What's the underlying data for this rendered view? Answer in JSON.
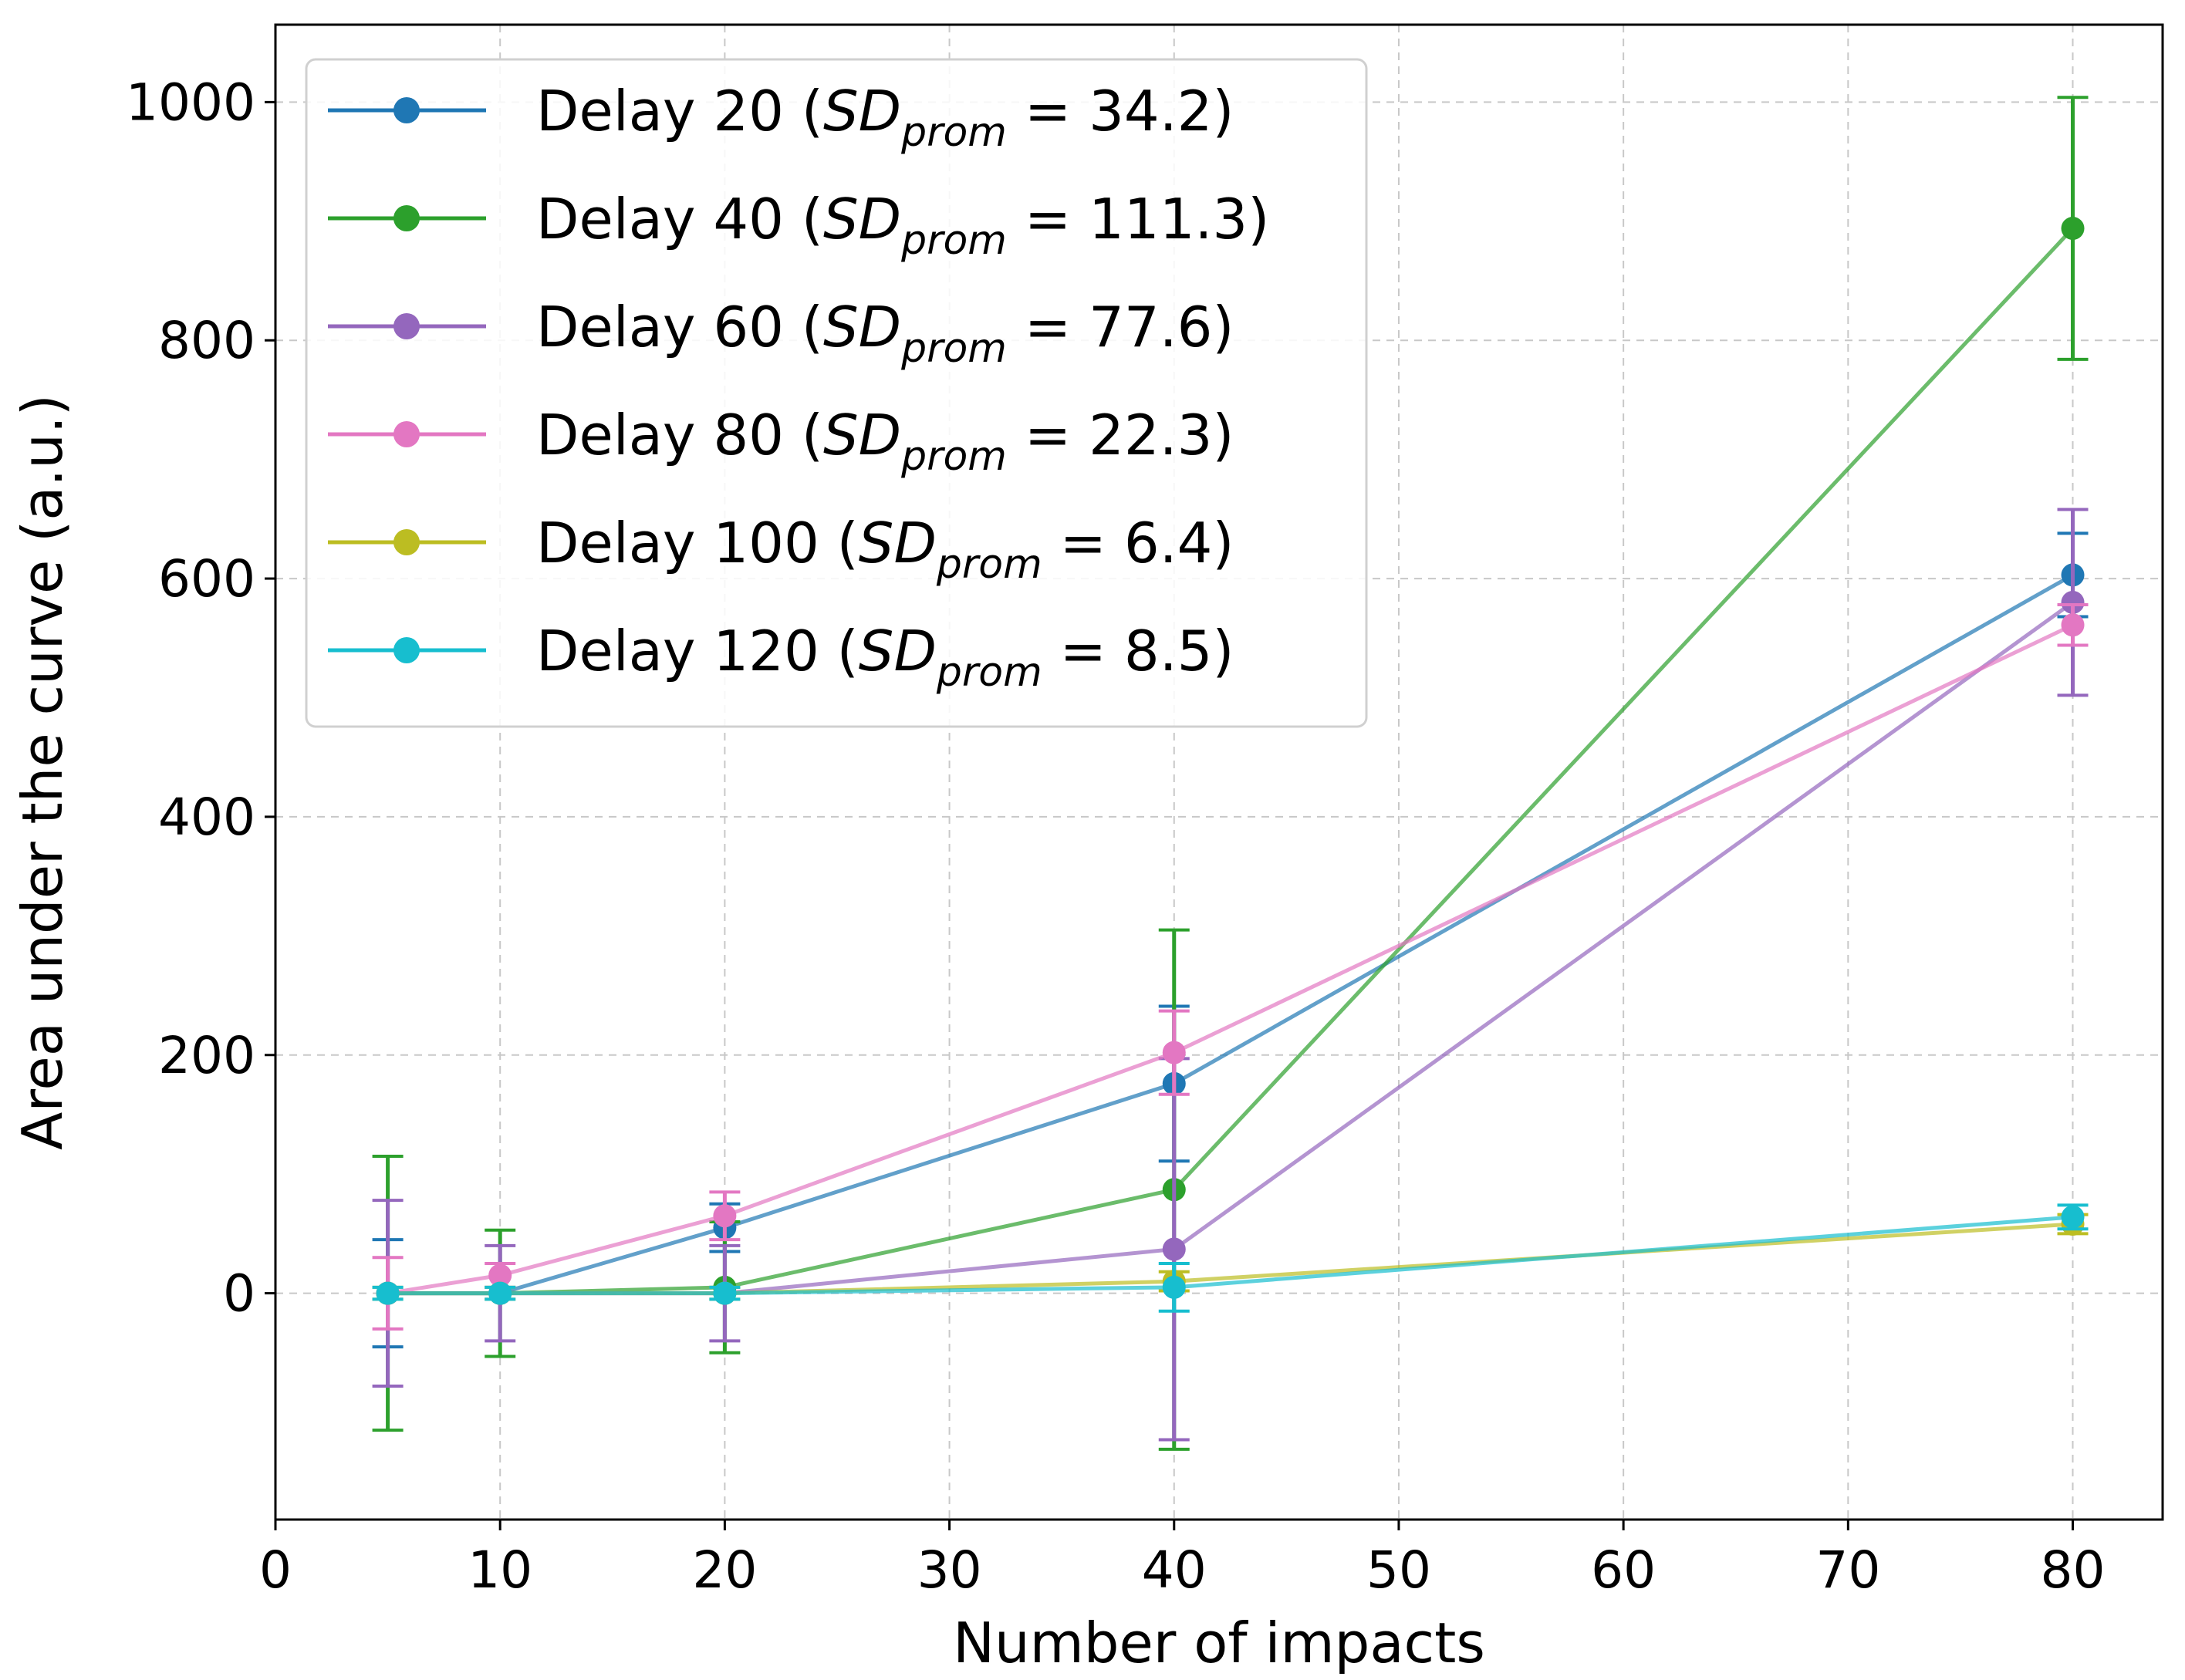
{
  "chart_data": {
    "type": "line",
    "title": "",
    "xlabel": "Number of impacts",
    "ylabel": "Area under the curve (a.u.)",
    "xlim": [
      0,
      84
    ],
    "ylim": [
      -190,
      1065
    ],
    "xticks": [
      0,
      10,
      20,
      30,
      40,
      50,
      60,
      70,
      80
    ],
    "yticks": [
      0,
      200,
      400,
      600,
      800,
      1000
    ],
    "grid": true,
    "legend_position": "top-left",
    "x": [
      5,
      10,
      20,
      40,
      80
    ],
    "series": [
      {
        "name": "Delay 20",
        "sd_label": "SD",
        "sd_sub": "prom",
        "sd_value": "34.2",
        "color": "#1f77b4",
        "values": [
          0,
          0,
          55,
          176,
          603
        ],
        "errors": [
          45,
          0,
          20,
          65,
          35
        ]
      },
      {
        "name": "Delay 40",
        "sd_label": "SD",
        "sd_sub": "prom",
        "sd_value": "111.3",
        "color": "#2ca02c",
        "values": [
          0,
          0,
          5,
          87,
          894
        ],
        "errors": [
          115,
          53,
          55,
          218,
          110
        ]
      },
      {
        "name": "Delay 60",
        "sd_label": "SD",
        "sd_sub": "prom",
        "sd_value": "77.6",
        "color": "#9467bd",
        "values": [
          0,
          0,
          0,
          37,
          580
        ],
        "errors": [
          78,
          40,
          40,
          160,
          78
        ]
      },
      {
        "name": "Delay 80",
        "sd_label": "SD",
        "sd_sub": "prom",
        "sd_value": "22.3",
        "color": "#e377c2",
        "values": [
          0,
          15,
          65,
          202,
          561
        ],
        "errors": [
          30,
          10,
          20,
          35,
          17
        ]
      },
      {
        "name": "Delay 100",
        "sd_label": "SD",
        "sd_sub": "prom",
        "sd_value": "6.4",
        "color": "#bcbd22",
        "values": [
          0,
          0,
          0,
          10,
          58
        ],
        "errors": [
          5,
          5,
          5,
          8,
          8
        ]
      },
      {
        "name": "Delay 120",
        "sd_label": "SD",
        "sd_sub": "prom",
        "sd_value": "8.5",
        "color": "#17becf",
        "values": [
          0,
          0,
          0,
          5,
          64
        ],
        "errors": [
          5,
          5,
          5,
          20,
          10
        ]
      }
    ]
  }
}
